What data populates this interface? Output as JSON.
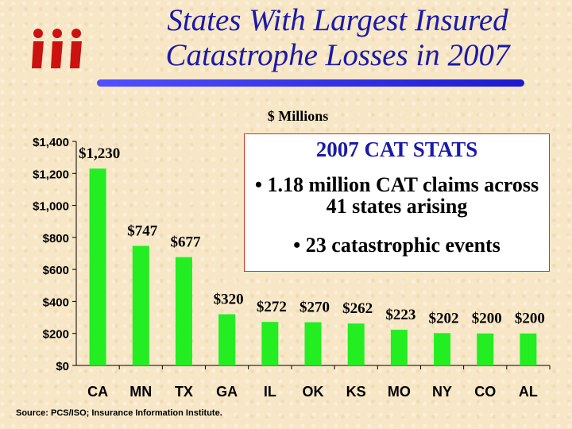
{
  "slide": {
    "title_line1": "States With Largest Insured",
    "title_line2": "Catastrophe Losses in 2007",
    "logo_text": "iii",
    "source": "Source: PCS/ISO; Insurance Information Institute."
  },
  "stats_box": {
    "heading": "2007 CAT STATS",
    "items": [
      "• 1.18 million CAT claims across 41 states arising",
      "• 23 catastrophic events"
    ]
  },
  "colors": {
    "bar": "#22ee22",
    "title": "#1a1aa8",
    "logo": "#cc1111",
    "box_border": "#c0392b"
  },
  "chart_data": {
    "type": "bar",
    "title": "$ Millions",
    "categories": [
      "CA",
      "MN",
      "TX",
      "GA",
      "IL",
      "OK",
      "KS",
      "MO",
      "NY",
      "CO",
      "AL"
    ],
    "values": [
      1230,
      747,
      677,
      320,
      272,
      270,
      262,
      223,
      202,
      200,
      200
    ],
    "data_labels": [
      "$1,230",
      "$747",
      "$677",
      "$320",
      "$272",
      "$270",
      "$262",
      "$223",
      "$202",
      "$200",
      "$200"
    ],
    "yticks": [
      "$0",
      "$200",
      "$400",
      "$600",
      "$800",
      "$1,000",
      "$1,200",
      "$1,400"
    ],
    "ylim": [
      0,
      1400
    ],
    "grid": false,
    "legend": "none"
  }
}
